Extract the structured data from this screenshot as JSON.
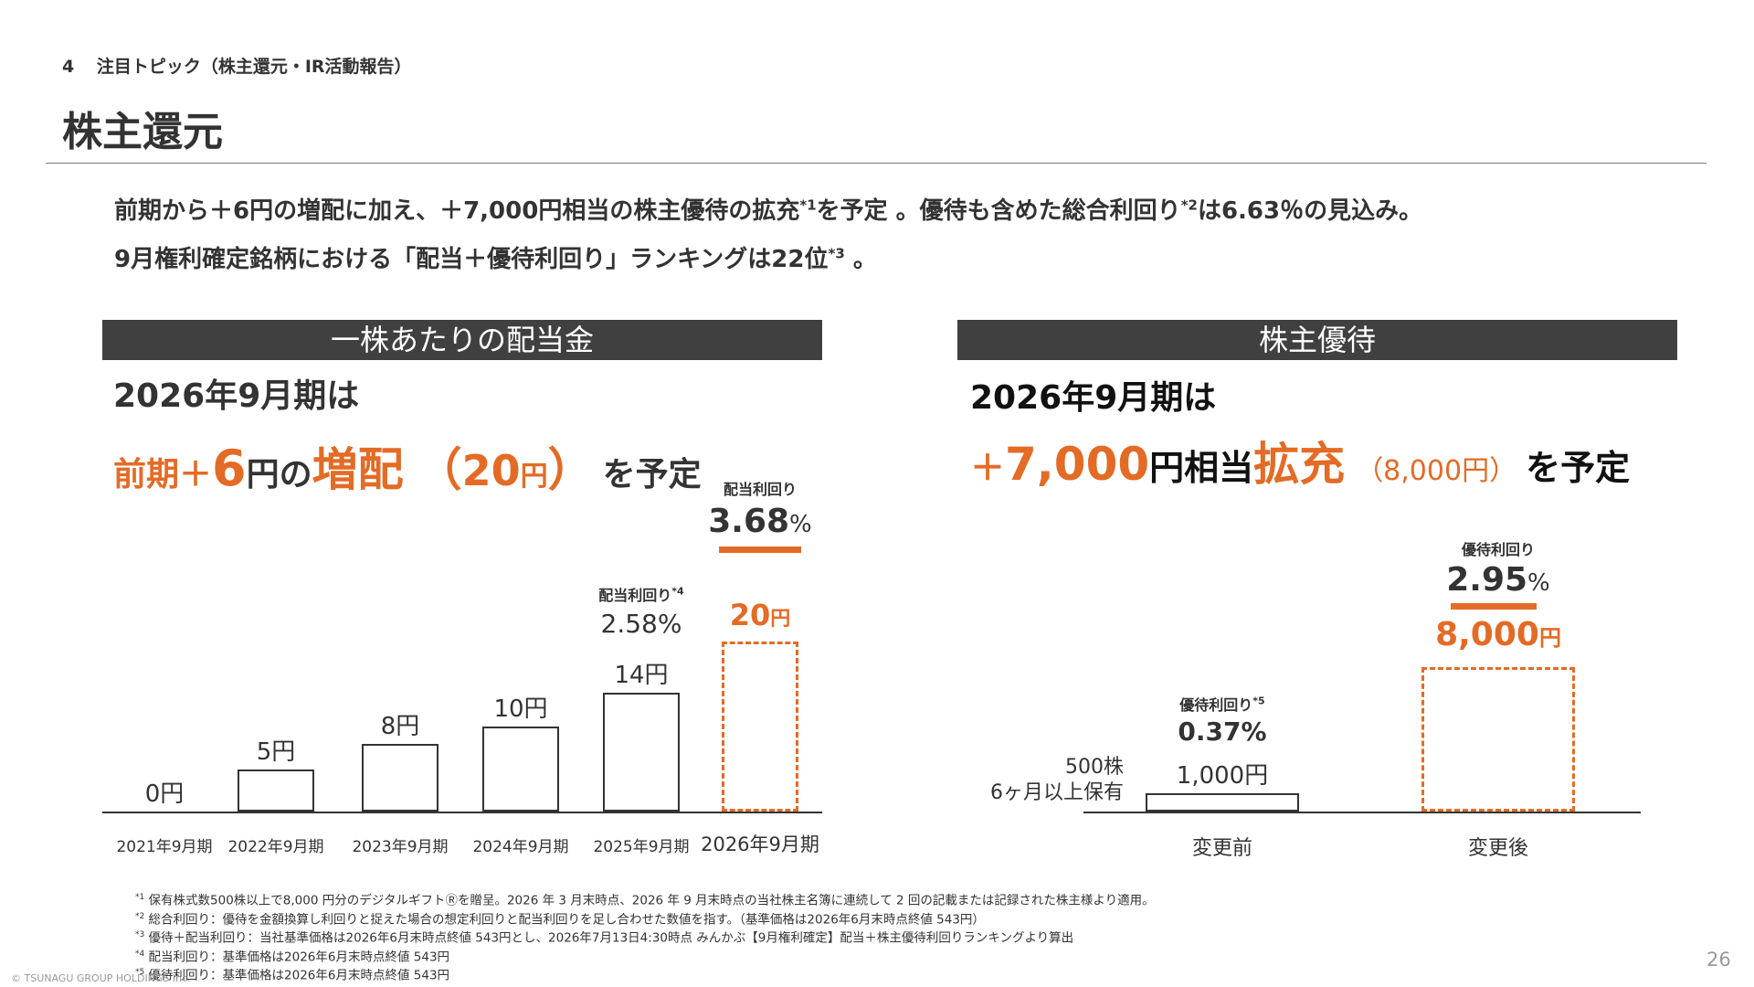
{
  "header": {
    "section_number": "4",
    "section_label": "注目トピック（株主還元・IR活動報告）",
    "title": "株主還元"
  },
  "intro": {
    "line1_a": "前期から＋6円の増配に加え、＋7,000円相当の株主優待の拡充",
    "line1_sup1": "*1",
    "line1_b": "を予定 。優待も含めた総合利回り",
    "line1_sup2": "*2",
    "line1_c": "は6.63％の見込み。",
    "line2_a": "9月権利確定銘柄における「配当＋優待利回り」ランキングは22位",
    "line2_sup": "*3",
    "line2_b": " 。"
  },
  "left_panel": {
    "header": "一株あたりの配当金",
    "subheading": "2026年9月期は",
    "headline": {
      "p1": "前期＋",
      "p2": "6",
      "p3": "円の",
      "p4": "増配",
      "p5": "（",
      "p6": "20",
      "p7": "円",
      "p8": "）",
      "p9": "を予定"
    }
  },
  "right_panel": {
    "header": "株主優待",
    "subheading": "2026年9月期は",
    "headline": {
      "p1": "＋",
      "p2": "7,000",
      "p3": "円相当",
      "p4": "拡充",
      "p5": "（8,000円）",
      "p6": "を予定"
    }
  },
  "chart_data": [
    {
      "type": "bar",
      "categories": [
        "2021年9月期",
        "2022年9月期",
        "2023年9月期",
        "2024年9月期",
        "2025年9月期",
        "2026年9月期"
      ],
      "values": [
        0,
        5,
        8,
        10,
        14,
        20
      ],
      "value_labels": [
        "0円",
        "5円",
        "8円",
        "10円",
        "14円",
        "20円"
      ],
      "annotations": [
        {
          "category": "2025年9月期",
          "label": "配当利回り",
          "sup": "*4",
          "value": "2.58%"
        },
        {
          "category": "2026年9月期",
          "label": "配当利回り",
          "value": "3.68",
          "unit": "%"
        }
      ],
      "forecast_category": "2026年9月期",
      "accent_color": "#e46b25",
      "bar_color": "#ffffff",
      "axis_color": "#333333"
    },
    {
      "type": "bar",
      "categories": [
        "変更前",
        "変更後"
      ],
      "values": [
        1000,
        8000
      ],
      "value_labels": [
        "1,000円",
        "8,000円"
      ],
      "side_note": [
        "500株",
        "6ヶ月以上保有"
      ],
      "annotations": [
        {
          "category": "変更前",
          "label": "優待利回り",
          "sup": "*5",
          "value": "0.37%"
        },
        {
          "category": "変更後",
          "label": "優待利回り",
          "value": "2.95",
          "unit": "%"
        }
      ],
      "forecast_category": "変更後",
      "accent_color": "#e46b25"
    }
  ],
  "footnotes": [
    {
      "sup": "*1",
      "text": " 保有株式数500株以上で8,000 円分のデジタルギフトⓇを贈呈。2026 年 3 月末時点、2026 年 9 月末時点の当社株主名簿に連続して 2 回の記載または記録された株主様より適用。"
    },
    {
      "sup": "*2",
      "text": " 総合利回り：優待を金額換算し利回りと捉えた場合の想定利回りと配当利回りを足し合わせた数値を指す。（基準価格は2026年6月末時点終値 543円）"
    },
    {
      "sup": "*3",
      "text": " 優待＋配当利回り：当社基準価格は2026年6月末時点終値 543円とし、2026年7月13日4:30時点 みんかぶ【9月権利確定】配当＋株主優待利回りランキングより算出"
    },
    {
      "sup": "*4",
      "text": " 配当利回り：基準価格は2026年6月末時点終値 543円"
    },
    {
      "sup": "*5",
      "text": " 優待利回り：基準価格は2026年6月末時点終値 543円"
    }
  ],
  "footer": {
    "copyright": "© TSUNAGU GROUP HOLDINGS Inc.",
    "page_number": "26"
  }
}
